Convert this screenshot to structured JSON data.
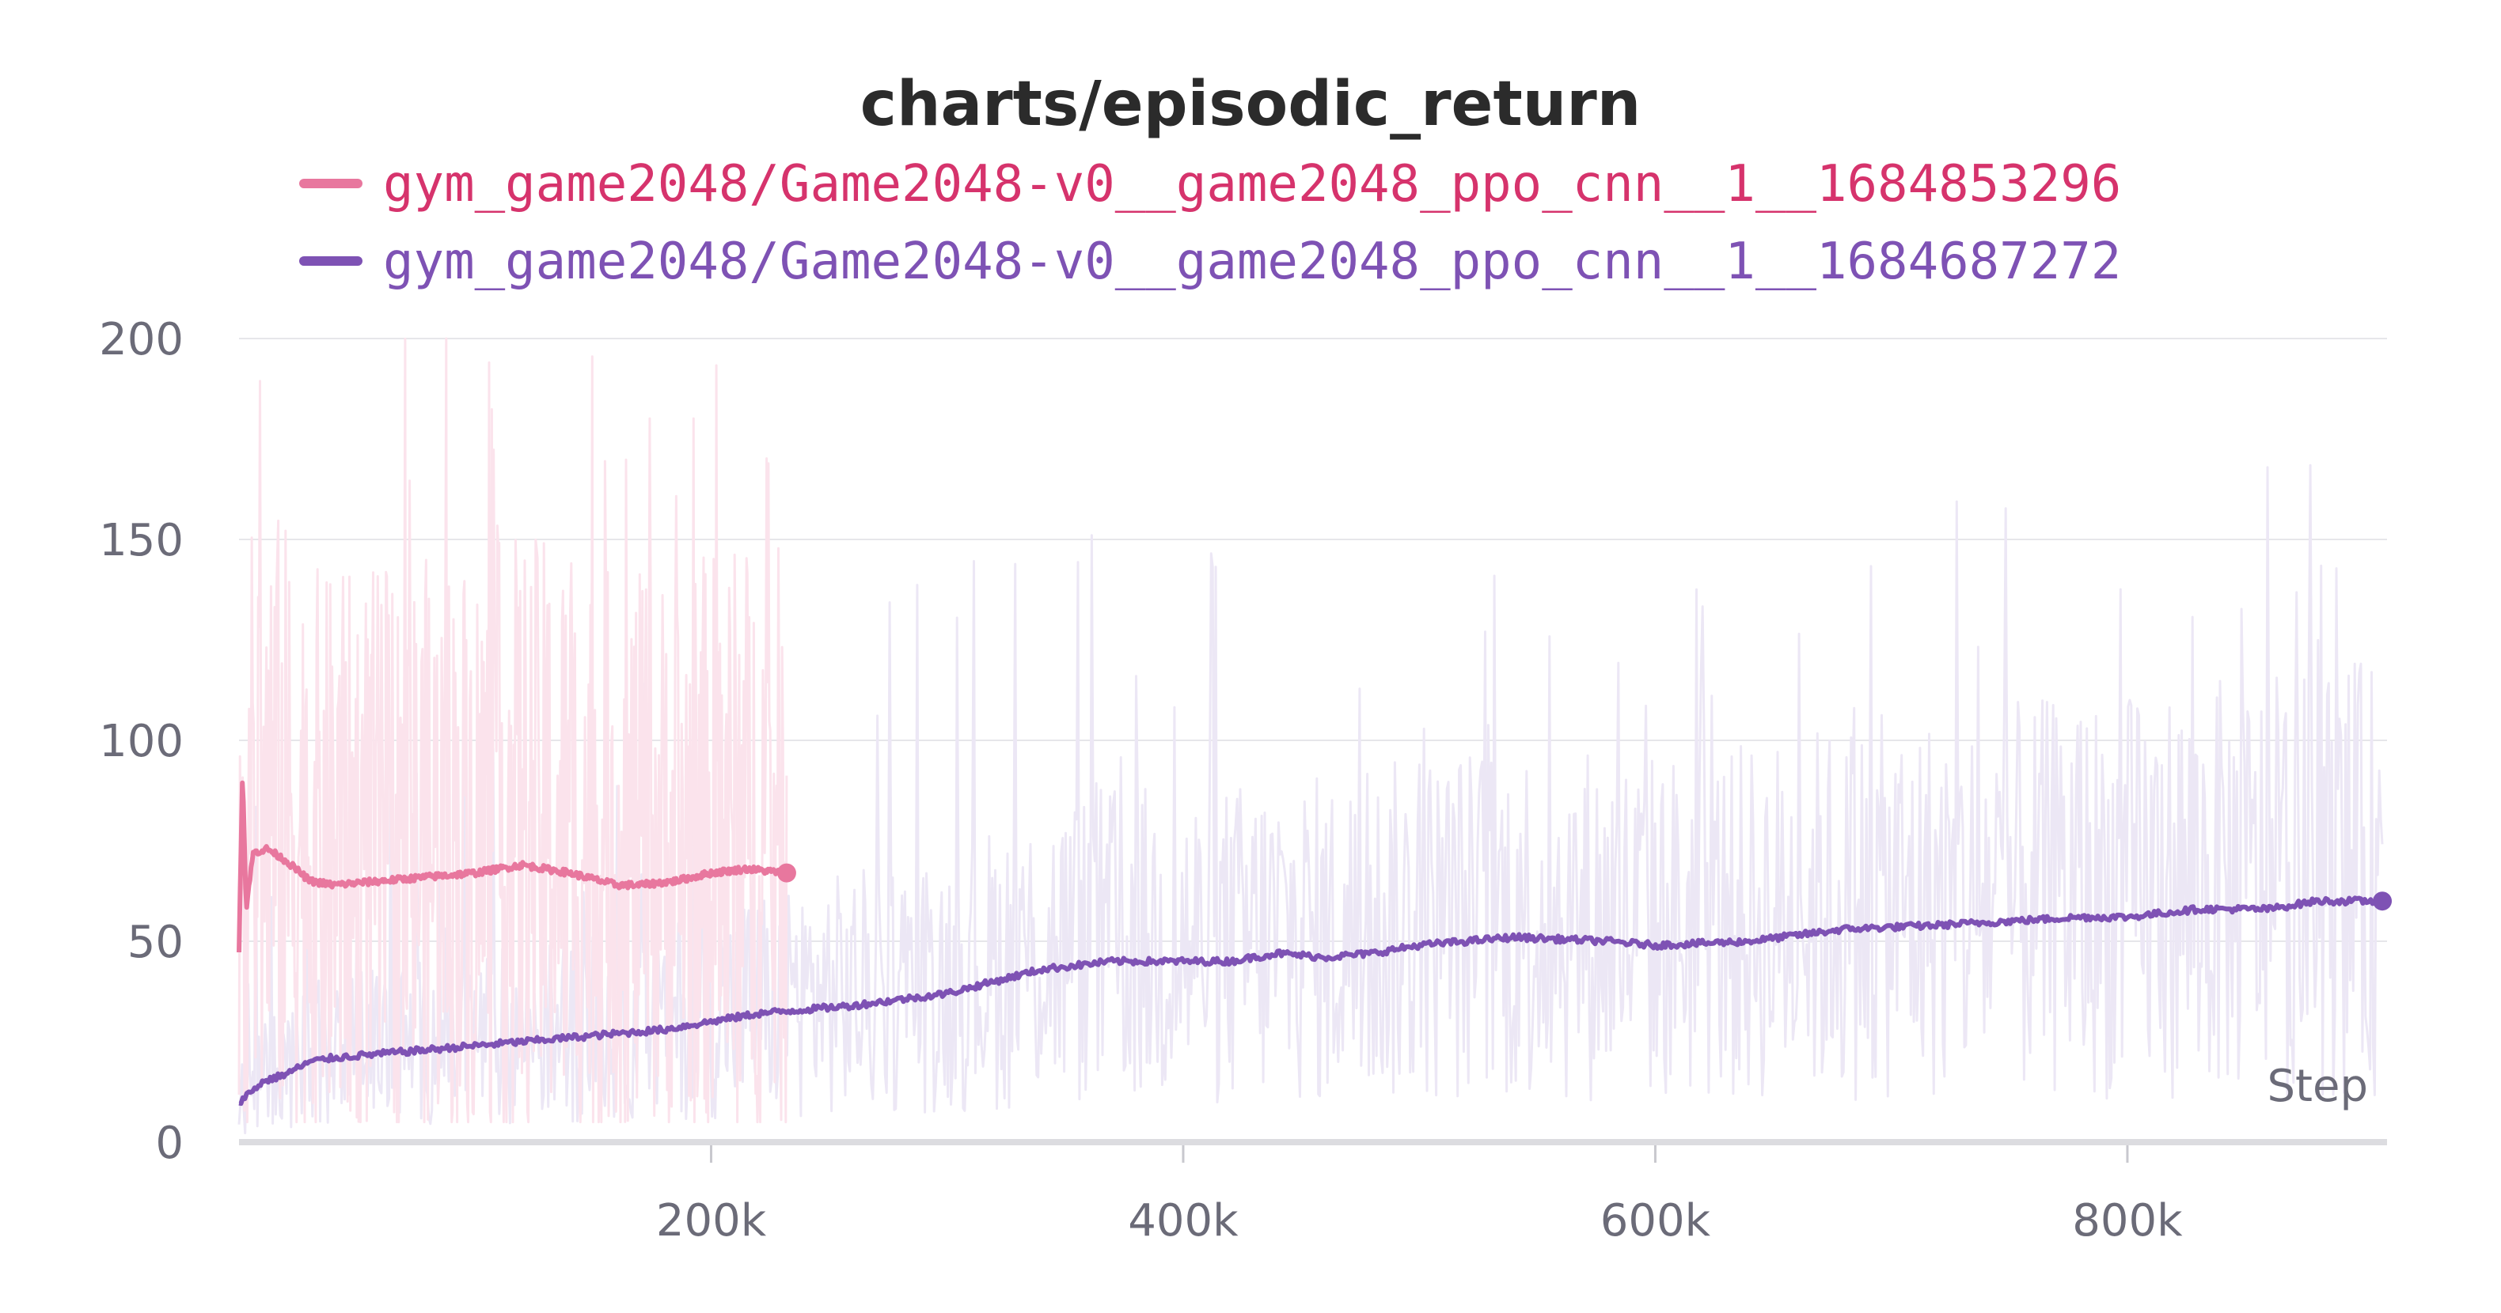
{
  "chart_data": {
    "type": "line",
    "title": "charts/episodic_return",
    "xlabel": "Step",
    "ylabel": "",
    "xlim": [
      0,
      910000
    ],
    "ylim": [
      0,
      200
    ],
    "x_ticks": [
      {
        "value": 200000,
        "label": "200k"
      },
      {
        "value": 400000,
        "label": "400k"
      },
      {
        "value": 600000,
        "label": "600k"
      },
      {
        "value": 800000,
        "label": "800k"
      }
    ],
    "y_ticks": [
      {
        "value": 0,
        "label": "0"
      },
      {
        "value": 50,
        "label": "50"
      },
      {
        "value": 100,
        "label": "100"
      },
      {
        "value": 150,
        "label": "150"
      },
      {
        "value": 200,
        "label": "200"
      }
    ],
    "grid": true,
    "legend_position": "top",
    "series": [
      {
        "name": "gym_game2048/Game2048-v0__game2048_ppo_cnn__1__1684853296",
        "color": "#e8779e",
        "legend_text_color": "#d6336c",
        "raw_color": "#fbe3ec",
        "raw_range": [
          5,
          200
        ],
        "smoothed": [
          [
            0,
            48
          ],
          [
            1500,
            93
          ],
          [
            3000,
            58
          ],
          [
            6000,
            72
          ],
          [
            12000,
            73
          ],
          [
            20000,
            70
          ],
          [
            30000,
            65
          ],
          [
            40000,
            64
          ],
          [
            60000,
            65
          ],
          [
            80000,
            66
          ],
          [
            100000,
            67
          ],
          [
            120000,
            69
          ],
          [
            140000,
            67
          ],
          [
            160000,
            64
          ],
          [
            170000,
            64
          ],
          [
            185000,
            65
          ],
          [
            200000,
            67
          ],
          [
            215000,
            68
          ],
          [
            232000,
            67
          ]
        ]
      },
      {
        "name": "gym_game2048/Game2048-v0__game2048_ppo_cnn__1__1684687272",
        "color": "#7e52b4",
        "legend_text_color": "#7e52b4",
        "raw_color": "#ece7f5",
        "raw_range": [
          2,
          200
        ],
        "smoothed": [
          [
            0,
            10
          ],
          [
            10000,
            15
          ],
          [
            20000,
            17
          ],
          [
            30000,
            20
          ],
          [
            40000,
            21
          ],
          [
            60000,
            22
          ],
          [
            80000,
            23
          ],
          [
            100000,
            24
          ],
          [
            140000,
            26
          ],
          [
            180000,
            28
          ],
          [
            220000,
            32
          ],
          [
            260000,
            34
          ],
          [
            300000,
            37
          ],
          [
            340000,
            43
          ],
          [
            370000,
            45
          ],
          [
            420000,
            45
          ],
          [
            440000,
            47
          ],
          [
            460000,
            46
          ],
          [
            480000,
            47
          ],
          [
            500000,
            49
          ],
          [
            540000,
            51
          ],
          [
            580000,
            50
          ],
          [
            600000,
            49
          ],
          [
            640000,
            50
          ],
          [
            680000,
            53
          ],
          [
            720000,
            54
          ],
          [
            780000,
            56
          ],
          [
            800000,
            56
          ],
          [
            830000,
            58
          ],
          [
            860000,
            58
          ],
          [
            880000,
            60
          ],
          [
            908000,
            60
          ]
        ]
      }
    ]
  }
}
